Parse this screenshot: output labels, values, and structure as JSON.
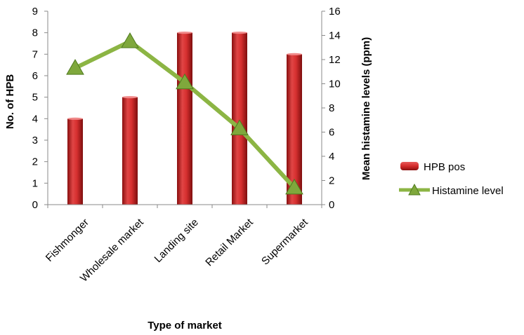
{
  "chart_data": {
    "type": "bar",
    "categories": [
      "Fishmonger",
      "Wholesale market",
      "Landing site",
      "Retail Market",
      "Supermarket"
    ],
    "series": [
      {
        "name": "HPB pos",
        "type": "bar",
        "axis": "left",
        "values": [
          4,
          5,
          8,
          8,
          7
        ],
        "color": "#d42b2b"
      },
      {
        "name": "Histamine level",
        "type": "line",
        "axis": "right",
        "values": [
          11.3,
          13.5,
          10.1,
          6.3,
          1.4
        ],
        "color": "#8cb544",
        "marker": "triangle"
      }
    ],
    "xlabel": "Type of market",
    "ylabel": "No. of HPB",
    "y2label": "Mean histamine levels (ppm)",
    "ylim": [
      0,
      9
    ],
    "y2lim": [
      0,
      16
    ],
    "yticks": [
      "0",
      "1",
      "2",
      "3",
      "4",
      "5",
      "6",
      "7",
      "8",
      "9"
    ],
    "y2ticks": [
      "0",
      "2",
      "4",
      "6",
      "8",
      "10",
      "12",
      "14",
      "16"
    ],
    "legend": "right",
    "grid": false
  }
}
